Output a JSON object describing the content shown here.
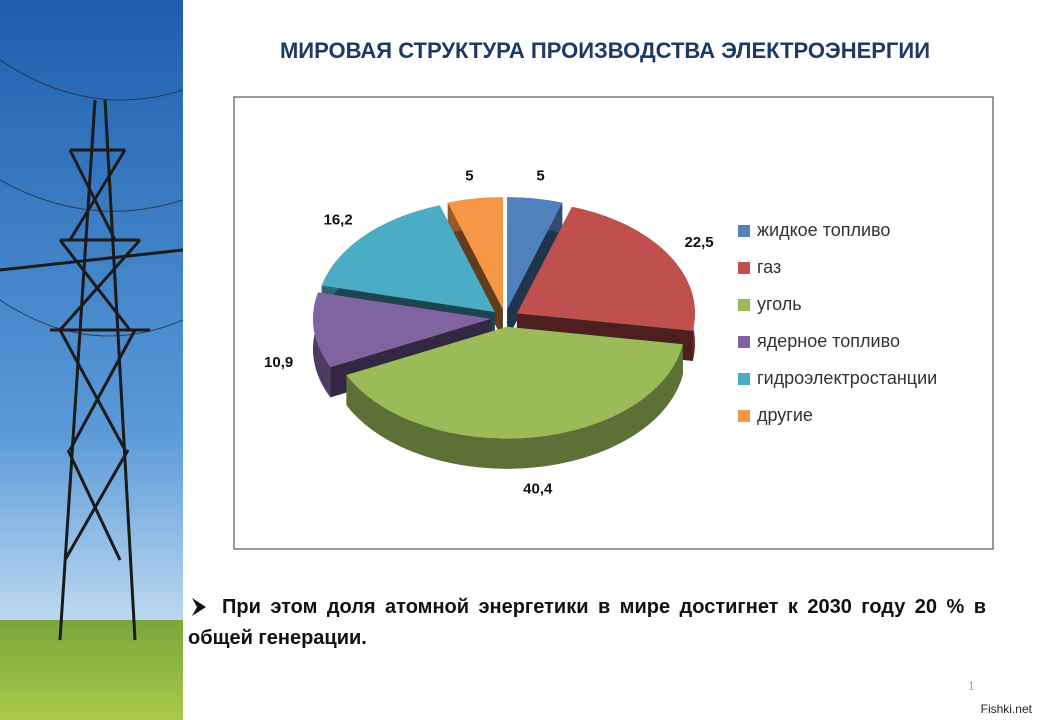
{
  "chart_data": {
    "type": "pie",
    "title": "МИРОВАЯ СТРУКТУРА ПРОИЗВОДСТВА ЭЛЕКТРОЭНЕРГИИ",
    "categories": [
      "жидкое топливо",
      "газ",
      "уголь",
      "ядерное топливо",
      "гидроэлектростанции",
      "другие"
    ],
    "values": [
      5,
      22.5,
      40.4,
      10.9,
      16.2,
      5
    ],
    "value_labels": [
      "5",
      "22,5",
      "40,4",
      "10,9",
      "16,2",
      "5"
    ],
    "colors": [
      "#4f81bd",
      "#c0504d",
      "#9bbb59",
      "#8064a2",
      "#4bacc6",
      "#f79646"
    ],
    "legend": "right"
  },
  "text": "При этом доля атомной энергетики в мире достигнет к 2030 году 20 % в общей генерации.",
  "page_number": "1",
  "watermark": "Fishki.net"
}
